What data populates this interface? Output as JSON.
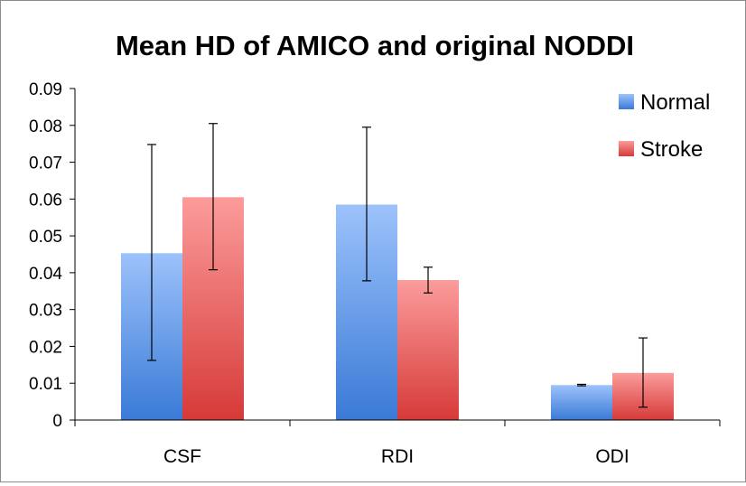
{
  "chart_data": {
    "type": "bar",
    "title": "Mean HD of AMICO and original NODDI",
    "xlabel": "",
    "ylabel": "",
    "categories": [
      "CSF",
      "RDI",
      "ODI"
    ],
    "ylim": [
      0,
      0.09
    ],
    "yticks": [
      0,
      0.01,
      0.02,
      0.03,
      0.04,
      0.05,
      0.06,
      0.07,
      0.08,
      0.09
    ],
    "ytick_labels": [
      "0",
      "0.01",
      "0.02",
      "0.03",
      "0.04",
      "0.05",
      "0.06",
      "0.07",
      "0.08",
      "0.09"
    ],
    "grid": false,
    "legend_position": "top-right",
    "series": [
      {
        "name": "Normal",
        "color": "#4f81bd",
        "color_light": "#9cc2fb",
        "color_dark": "#3a7ad6",
        "values": [
          0.0453,
          0.0585,
          0.0095
        ],
        "error_low": [
          0.0162,
          0.0378,
          0.0093
        ],
        "error_high": [
          0.0748,
          0.0795,
          0.0097
        ]
      },
      {
        "name": "Stroke",
        "color": "#c0504d",
        "color_light": "#fb9c9b",
        "color_dark": "#d63a38",
        "values": [
          0.0605,
          0.038,
          0.0128
        ],
        "error_low": [
          0.0408,
          0.0345,
          0.0035
        ],
        "error_high": [
          0.0805,
          0.0415,
          0.0223
        ]
      }
    ]
  }
}
